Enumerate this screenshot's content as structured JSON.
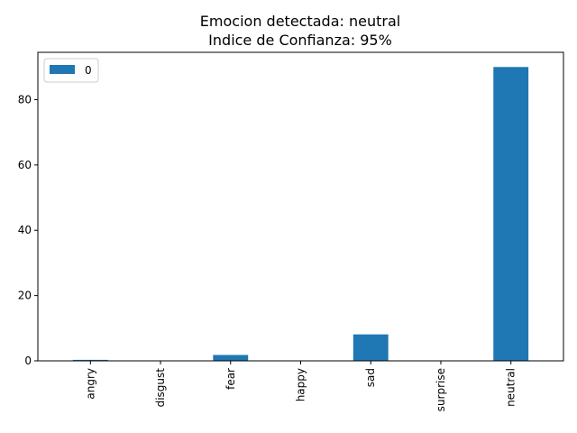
{
  "chart_data": {
    "type": "bar",
    "title_line1": "Emocion detectada: neutral",
    "title_line2": "Indice de Confianza: 95%",
    "xlabel": "",
    "ylabel": "",
    "categories": [
      "angry",
      "disgust",
      "fear",
      "happy",
      "sad",
      "surprise",
      "neutral"
    ],
    "series": [
      {
        "name": "0",
        "values": [
          0.3,
          0.0,
          1.8,
          0.1,
          8.1,
          0.0,
          90.0
        ]
      }
    ],
    "ylim": [
      0,
      94.5
    ],
    "yticks": [
      0,
      20,
      40,
      60,
      80
    ],
    "grid": false,
    "legend_position": "upper-left",
    "bar_color": "#1f77b4"
  }
}
